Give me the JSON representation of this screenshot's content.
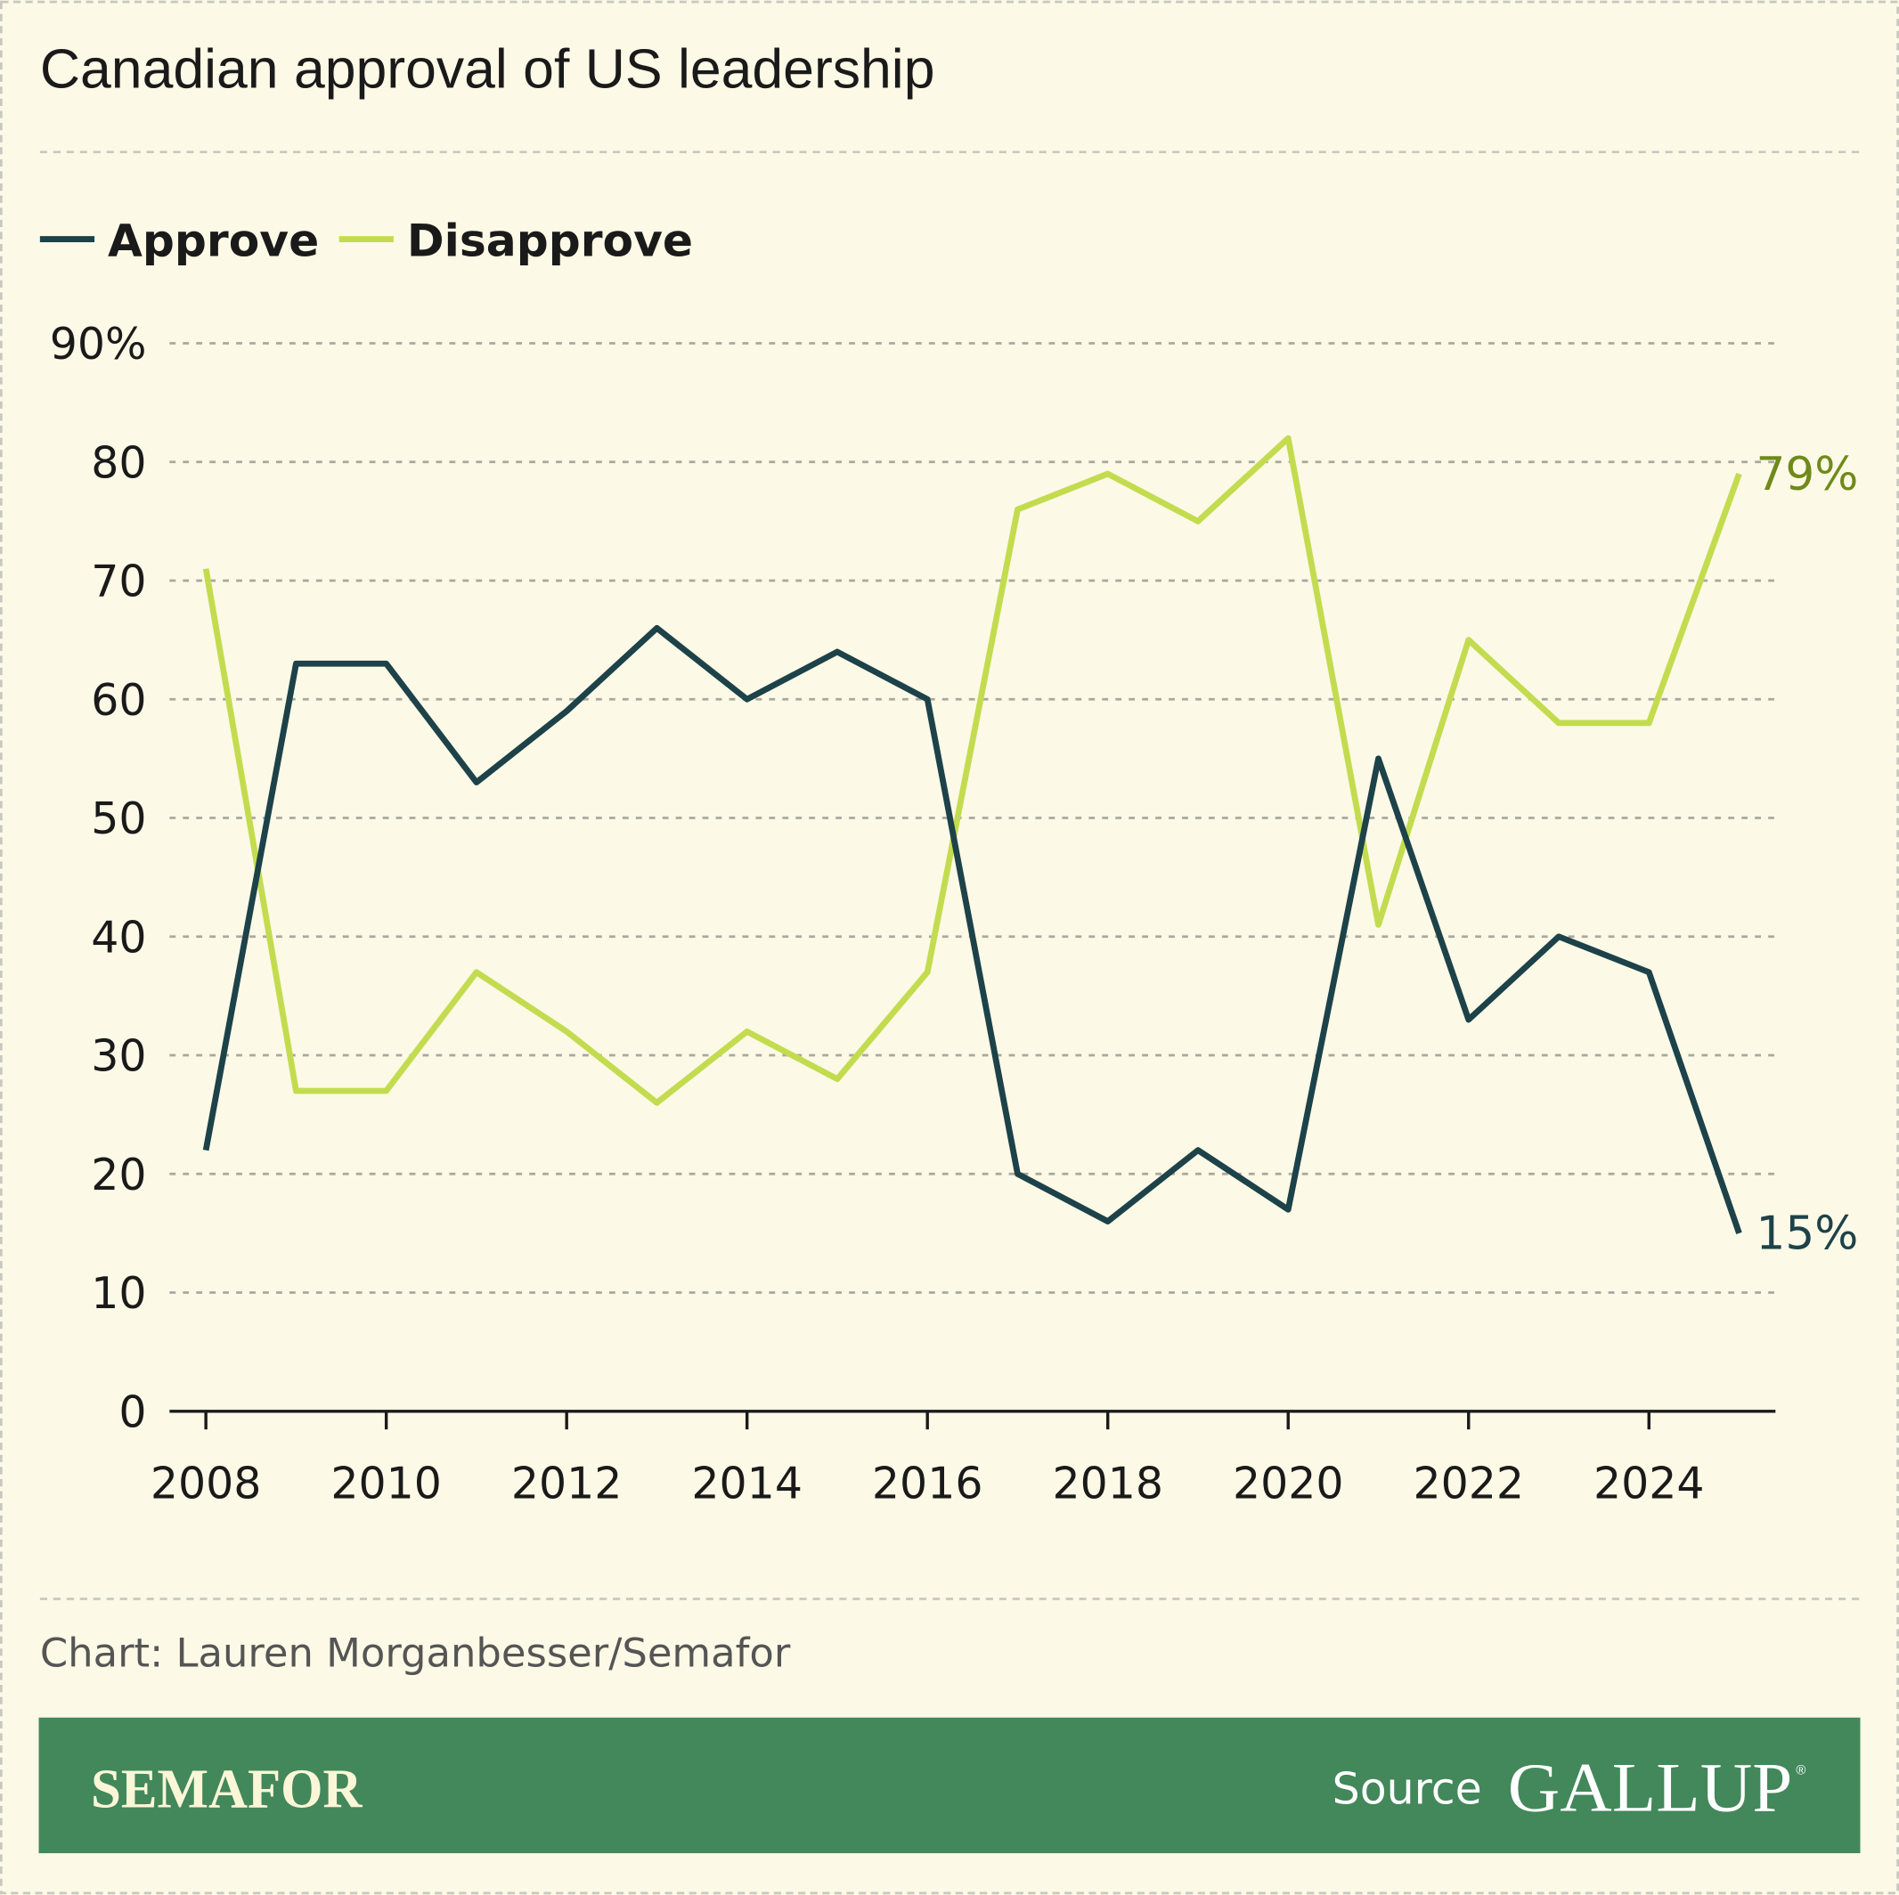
{
  "title": "Canadian approval of US leadership",
  "credit": "Chart: Lauren Morganbesser/Semafor",
  "footer": {
    "brand": "SEMAFOR",
    "source_label": "Source",
    "source_logo": "GALLUP",
    "background": "#42885a"
  },
  "chart_data": {
    "type": "line",
    "x": [
      2008,
      2009,
      2010,
      2011,
      2012,
      2013,
      2014,
      2015,
      2016,
      2017,
      2018,
      2019,
      2020,
      2021,
      2022,
      2023,
      2024,
      2025
    ],
    "series": [
      {
        "name": "Approve",
        "color": "#1d4249",
        "values": [
          22,
          63,
          63,
          53,
          59,
          66,
          60,
          64,
          60,
          20,
          16,
          22,
          17,
          55,
          33,
          40,
          37,
          15
        ],
        "end_label": "15%"
      },
      {
        "name": "Disapprove",
        "color": "#c3dc4f",
        "label_color": "#6f8a1a",
        "values": [
          71,
          27,
          27,
          37,
          32,
          26,
          32,
          28,
          37,
          76,
          79,
          75,
          82,
          41,
          65,
          58,
          58,
          79
        ],
        "end_label": "79%"
      }
    ],
    "ylim": [
      0,
      90
    ],
    "yticks": [
      0,
      10,
      20,
      30,
      40,
      50,
      60,
      70,
      80,
      90
    ],
    "ytick_labels": [
      "0",
      "10",
      "20",
      "30",
      "40",
      "50",
      "60",
      "70",
      "80",
      "90%"
    ],
    "xticks": [
      2008,
      2010,
      2012,
      2014,
      2016,
      2018,
      2020,
      2022,
      2024
    ],
    "xtick_labels": [
      "2008",
      "2010",
      "2012",
      "2014",
      "2016",
      "2018",
      "2020",
      "2022",
      "2024"
    ],
    "grid": true,
    "legend_position": "top-left"
  }
}
